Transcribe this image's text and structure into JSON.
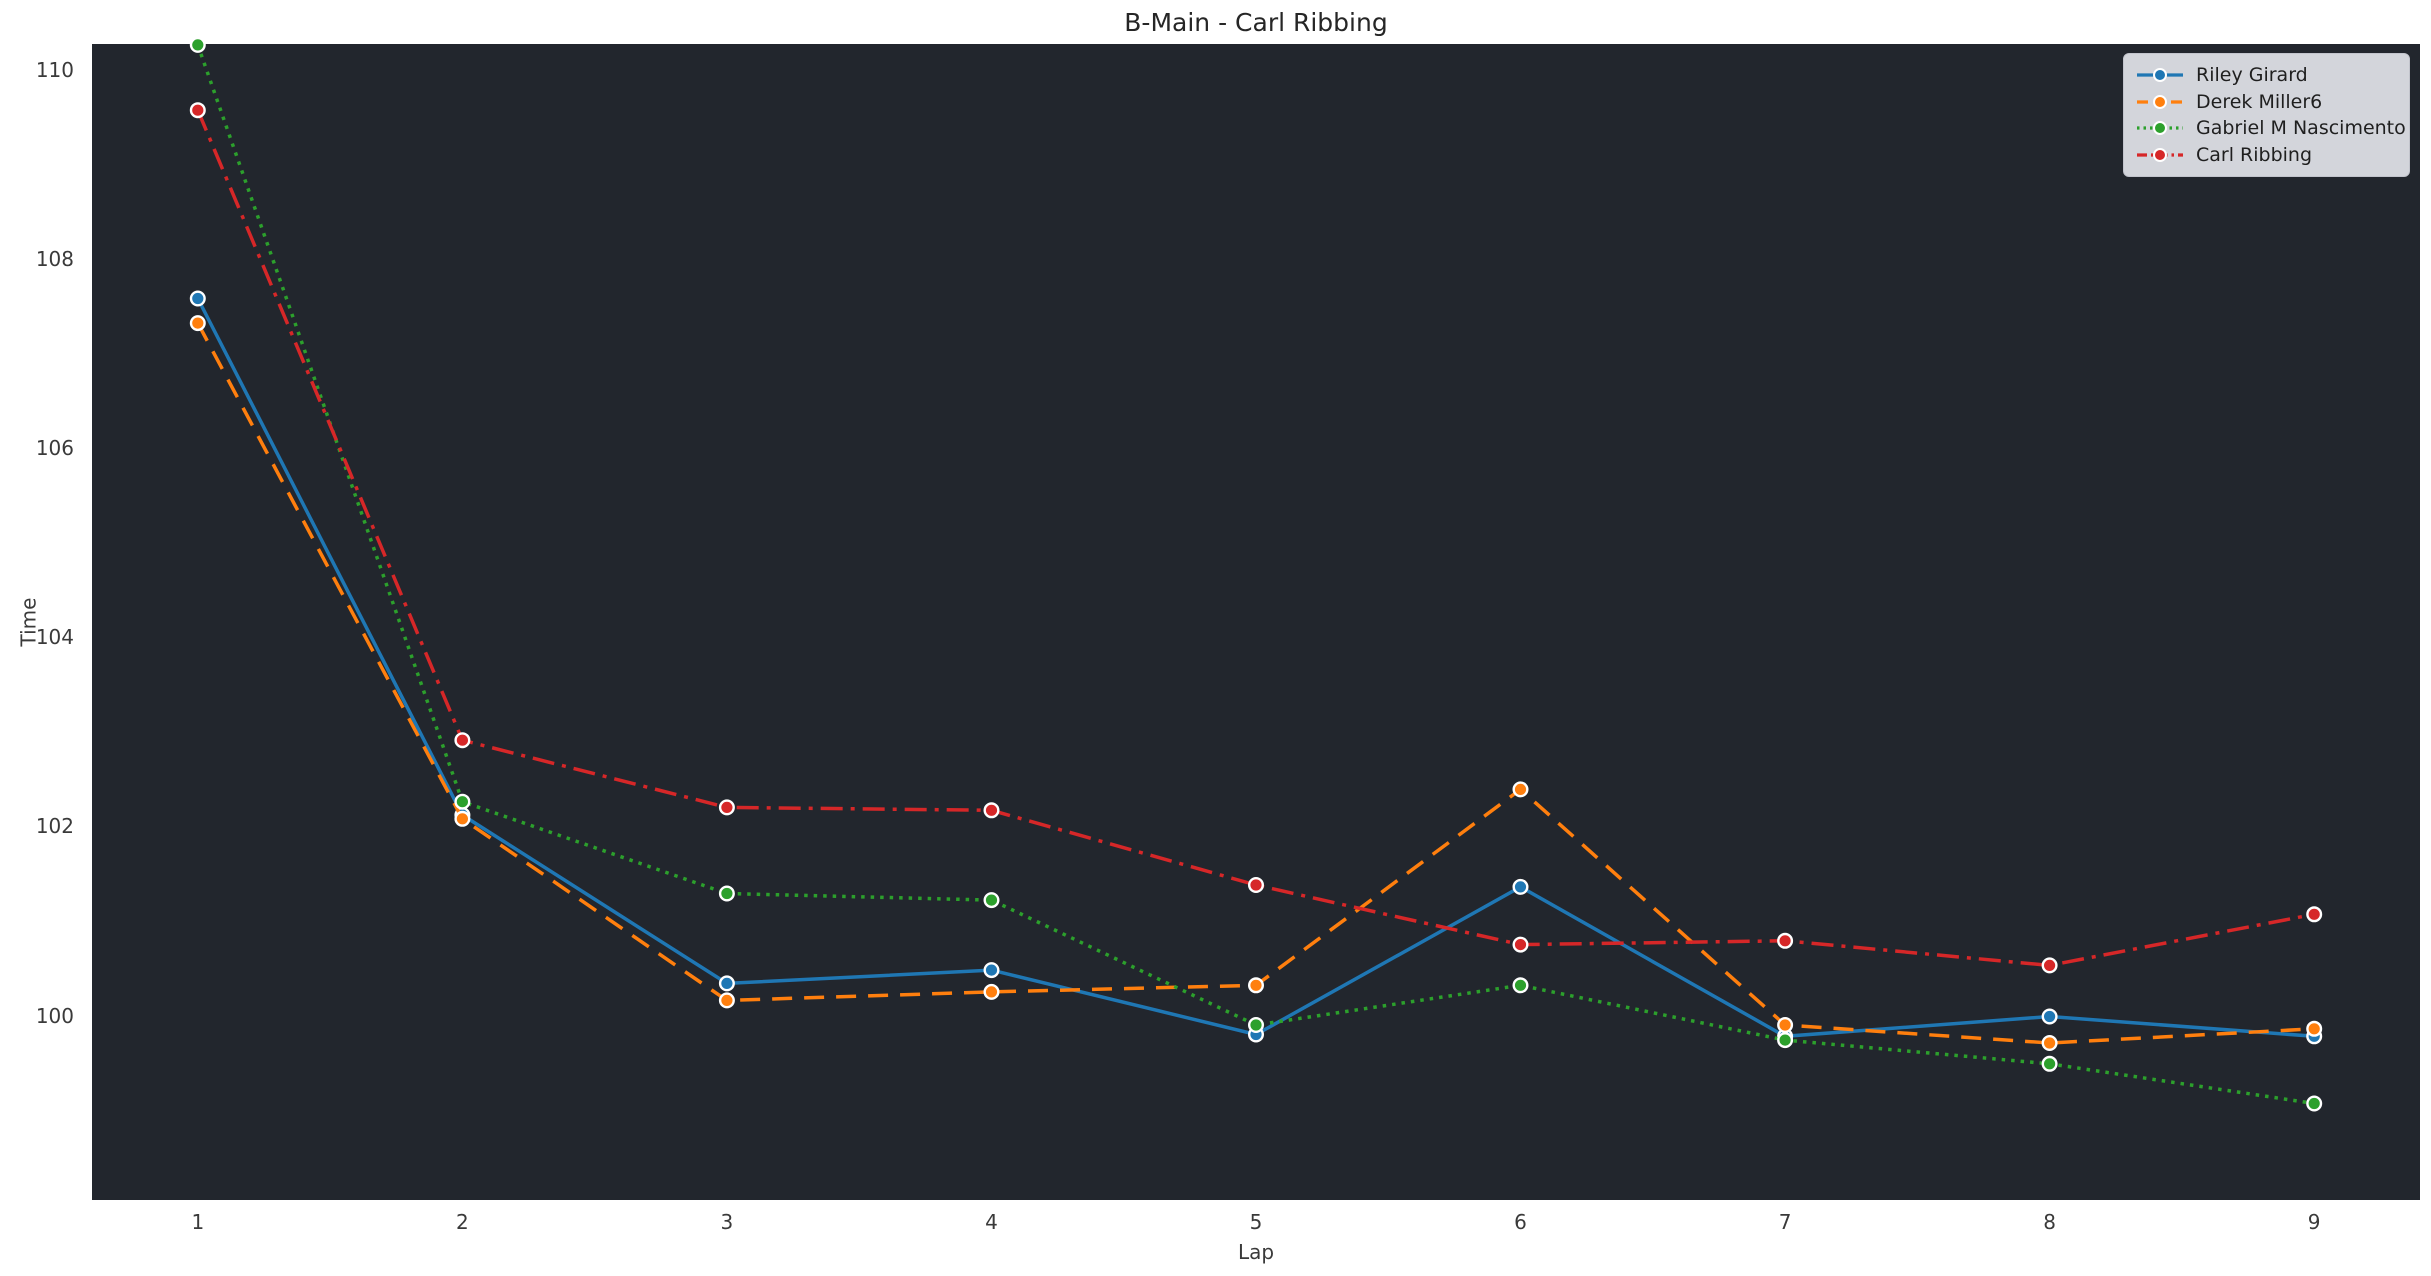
{
  "chart_data": {
    "type": "line",
    "title": "B-Main - Carl Ribbing",
    "xlabel": "Lap",
    "ylabel": "Time",
    "x": [
      1,
      2,
      3,
      4,
      5,
      6,
      7,
      8,
      9
    ],
    "xticks": [
      "1",
      "2",
      "3",
      "4",
      "5",
      "6",
      "7",
      "8",
      "9"
    ],
    "yticks": [
      "100",
      "102",
      "104",
      "106",
      "108",
      "110"
    ],
    "ytick_values": [
      100,
      102,
      104,
      106,
      108,
      110
    ],
    "xlim": [
      0.6,
      9.4
    ],
    "ylim": [
      98.05,
      110.27
    ],
    "grid": false,
    "legend_position": "top-right",
    "colors": {
      "figure_bg": "#ffffff",
      "plot_bg": "#22262d",
      "legend_bg": "#d3d5db",
      "tick_text": "#3a3a3a",
      "title_text": "#262626",
      "marker_edge": "#ffffff"
    },
    "series": [
      {
        "name": "Riley Girard",
        "color": "#1f77b4",
        "line_style": "solid",
        "values": [
          107.58,
          102.12,
          100.34,
          100.48,
          99.8,
          101.36,
          99.78,
          99.99,
          99.78
        ]
      },
      {
        "name": "Derek Miller6",
        "color": "#ff7f0e",
        "line_style": "dashed",
        "values": [
          107.32,
          102.08,
          100.16,
          100.25,
          100.32,
          102.39,
          99.9,
          99.71,
          99.86
        ]
      },
      {
        "name": "Gabriel M Nascimento",
        "color": "#2ca02c",
        "line_style": "dotted",
        "values": [
          110.26,
          102.26,
          101.29,
          101.22,
          99.9,
          100.32,
          99.74,
          99.49,
          99.07
        ]
      },
      {
        "name": "Carl Ribbing",
        "color": "#d62728",
        "line_style": "dashdot",
        "values": [
          109.57,
          102.91,
          102.2,
          102.17,
          101.38,
          100.75,
          100.79,
          100.53,
          101.07
        ]
      }
    ]
  }
}
